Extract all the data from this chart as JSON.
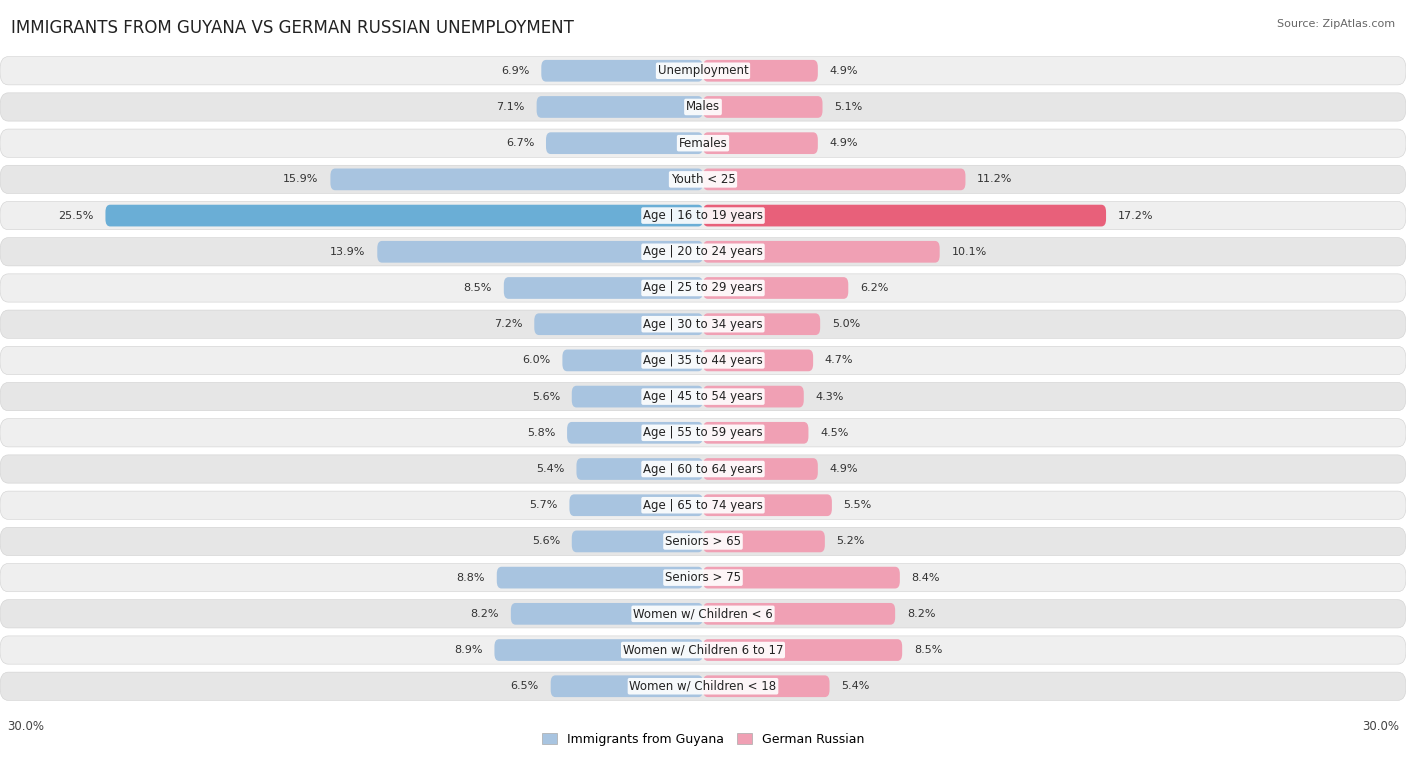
{
  "title": "IMMIGRANTS FROM GUYANA VS GERMAN RUSSIAN UNEMPLOYMENT",
  "source": "Source: ZipAtlas.com",
  "categories": [
    "Unemployment",
    "Males",
    "Females",
    "Youth < 25",
    "Age | 16 to 19 years",
    "Age | 20 to 24 years",
    "Age | 25 to 29 years",
    "Age | 30 to 34 years",
    "Age | 35 to 44 years",
    "Age | 45 to 54 years",
    "Age | 55 to 59 years",
    "Age | 60 to 64 years",
    "Age | 65 to 74 years",
    "Seniors > 65",
    "Seniors > 75",
    "Women w/ Children < 6",
    "Women w/ Children 6 to 17",
    "Women w/ Children < 18"
  ],
  "left_values": [
    6.9,
    7.1,
    6.7,
    15.9,
    25.5,
    13.9,
    8.5,
    7.2,
    6.0,
    5.6,
    5.8,
    5.4,
    5.7,
    5.6,
    8.8,
    8.2,
    8.9,
    6.5
  ],
  "right_values": [
    4.9,
    5.1,
    4.9,
    11.2,
    17.2,
    10.1,
    6.2,
    5.0,
    4.7,
    4.3,
    4.5,
    4.9,
    5.5,
    5.2,
    8.4,
    8.2,
    8.5,
    5.4
  ],
  "left_color": "#a8c4e0",
  "right_color": "#f0a0b4",
  "highlight_left_color": "#6aaed6",
  "highlight_right_color": "#e8607a",
  "left_label": "Immigrants from Guyana",
  "right_label": "German Russian",
  "axis_max": 30.0,
  "title_fontsize": 12,
  "label_fontsize": 8.5,
  "value_fontsize": 8.0
}
